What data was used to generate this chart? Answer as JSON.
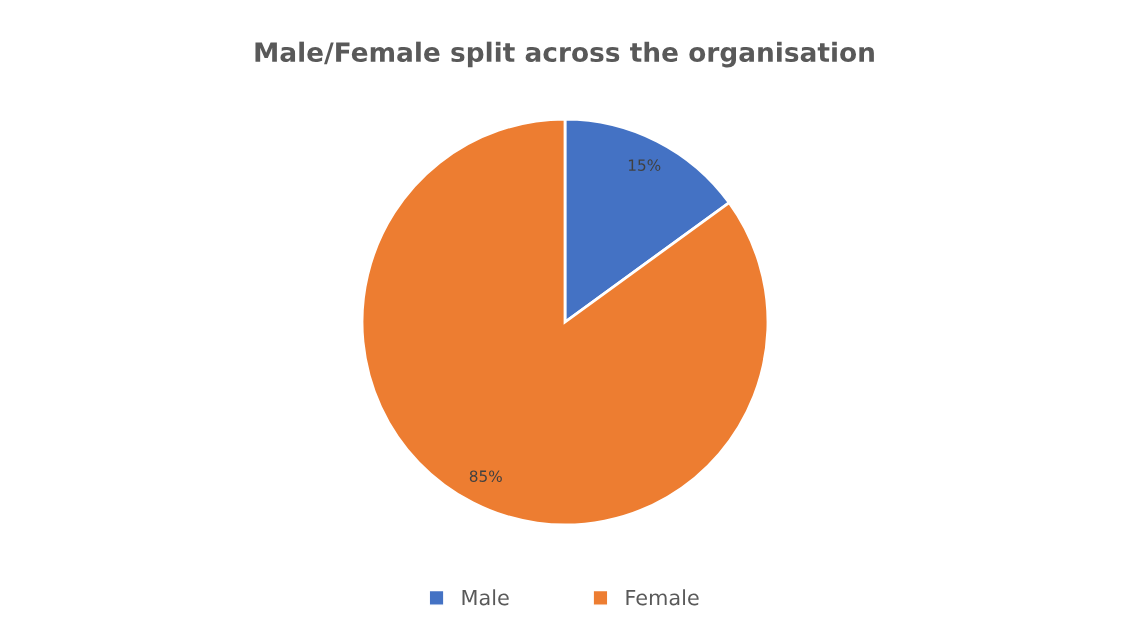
{
  "chart_data": {
    "type": "pie",
    "title": "Male/Female split across the organisation",
    "categories": [
      "Male",
      "Female"
    ],
    "values": [
      15,
      85
    ],
    "colors": [
      "#4472c4",
      "#ed7d31"
    ],
    "value_labels": [
      "15%",
      "85%"
    ],
    "legend": "bottom"
  }
}
